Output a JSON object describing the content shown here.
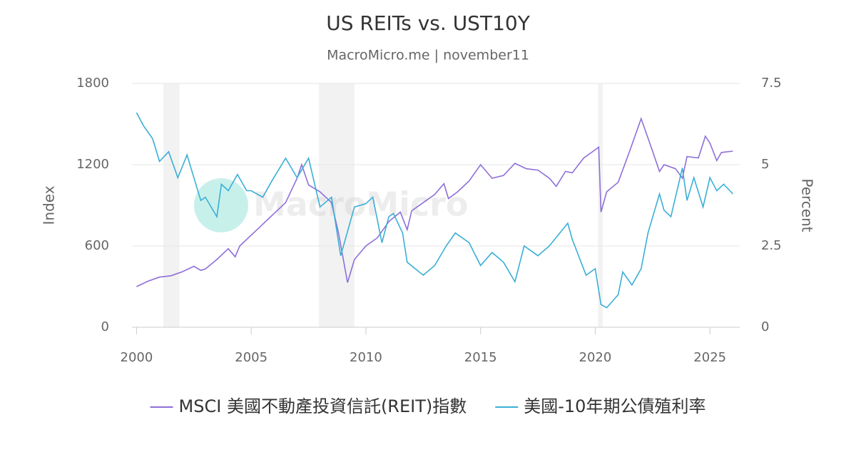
{
  "chart_data": {
    "type": "line",
    "title": "US REITs vs. UST10Y",
    "subtitle": "MacroMicro.me | november11",
    "watermark": "MacroMicro",
    "y_label": "Index",
    "y2_label": "Percent",
    "xlim": [
      1999.8,
      2026.3
    ],
    "xticks": [
      2000,
      2005,
      2010,
      2015,
      2020,
      2025
    ],
    "ylim": [
      0,
      1800
    ],
    "yticks": [
      0,
      600,
      1200,
      1800
    ],
    "y2lim": [
      0,
      7.5
    ],
    "y2ticks": [
      0,
      2.5,
      5,
      7.5
    ],
    "grid": true,
    "legend": "bottom",
    "shaded_periods": [
      [
        2001.17,
        2001.87
      ],
      [
        2007.95,
        2009.5
      ],
      [
        2020.12,
        2020.33
      ]
    ],
    "shade_color": "#f2f2f2",
    "series": [
      {
        "name": "MSCI 美國不動產投資信託(REIT)指數",
        "color": "#8e6fd8",
        "axis": "y",
        "x": [
          2000,
          2000.5,
          2001,
          2001.5,
          2002,
          2002.5,
          2002.8,
          2003,
          2003.5,
          2004,
          2004.3,
          2004.5,
          2005,
          2005.5,
          2006,
          2006.5,
          2007,
          2007.2,
          2007.5,
          2008,
          2008.5,
          2008.8,
          2009.2,
          2009.5,
          2010,
          2010.5,
          2011,
          2011.5,
          2011.8,
          2012,
          2012.5,
          2013,
          2013.4,
          2013.6,
          2014,
          2014.5,
          2015,
          2015.5,
          2016,
          2016.5,
          2017,
          2017.5,
          2018,
          2018.3,
          2018.7,
          2019,
          2019.5,
          2020,
          2020.15,
          2020.25,
          2020.5,
          2021,
          2021.5,
          2022,
          2022.5,
          2022.8,
          2023,
          2023.5,
          2023.8,
          2024,
          2024.5,
          2024.8,
          2025,
          2025.3,
          2025.5,
          2026
        ],
        "values": [
          300,
          340,
          370,
          380,
          410,
          450,
          420,
          430,
          500,
          580,
          520,
          600,
          680,
          760,
          840,
          920,
          1100,
          1200,
          1050,
          1000,
          920,
          700,
          330,
          500,
          600,
          660,
          780,
          850,
          720,
          860,
          920,
          980,
          1060,
          950,
          1000,
          1080,
          1200,
          1100,
          1120,
          1210,
          1170,
          1160,
          1100,
          1040,
          1150,
          1140,
          1250,
          1310,
          1330,
          850,
          1000,
          1070,
          1300,
          1540,
          1300,
          1150,
          1200,
          1170,
          1100,
          1260,
          1250,
          1410,
          1360,
          1230,
          1290,
          1300
        ]
      },
      {
        "name": "美國-10年期公債殖利率",
        "color": "#3aafd6",
        "axis": "y2",
        "x": [
          2000,
          2000.3,
          2000.7,
          2001,
          2001.4,
          2001.8,
          2002.2,
          2002.5,
          2002.8,
          2003,
          2003.5,
          2003.7,
          2004,
          2004.4,
          2004.8,
          2005,
          2005.5,
          2005.9,
          2006.5,
          2007,
          2007.5,
          2008,
          2008.5,
          2008.9,
          2009.5,
          2010,
          2010.3,
          2010.7,
          2011,
          2011.2,
          2011.6,
          2011.8,
          2012.5,
          2013,
          2013.5,
          2013.9,
          2014.5,
          2015,
          2015.5,
          2016,
          2016.5,
          2016.9,
          2017.5,
          2018,
          2018.8,
          2019,
          2019.6,
          2020,
          2020.25,
          2020.5,
          2021,
          2021.2,
          2021.6,
          2022,
          2022.3,
          2022.8,
          2023,
          2023.3,
          2023.8,
          2024,
          2024.3,
          2024.7,
          2025,
          2025.3,
          2025.6,
          2026
        ],
        "values": [
          6.6,
          6.2,
          5.8,
          5.1,
          5.4,
          4.6,
          5.3,
          4.6,
          3.9,
          4.0,
          3.4,
          4.4,
          4.2,
          4.7,
          4.2,
          4.2,
          4.0,
          4.5,
          5.2,
          4.6,
          5.2,
          3.7,
          4.0,
          2.2,
          3.7,
          3.8,
          4.0,
          2.6,
          3.4,
          3.5,
          2.9,
          2.0,
          1.6,
          1.9,
          2.5,
          2.9,
          2.6,
          1.9,
          2.3,
          2.0,
          1.4,
          2.5,
          2.2,
          2.5,
          3.2,
          2.7,
          1.6,
          1.8,
          0.7,
          0.6,
          1.0,
          1.7,
          1.3,
          1.8,
          2.9,
          4.1,
          3.6,
          3.4,
          4.9,
          3.9,
          4.6,
          3.7,
          4.6,
          4.2,
          4.4,
          4.1
        ]
      }
    ]
  }
}
